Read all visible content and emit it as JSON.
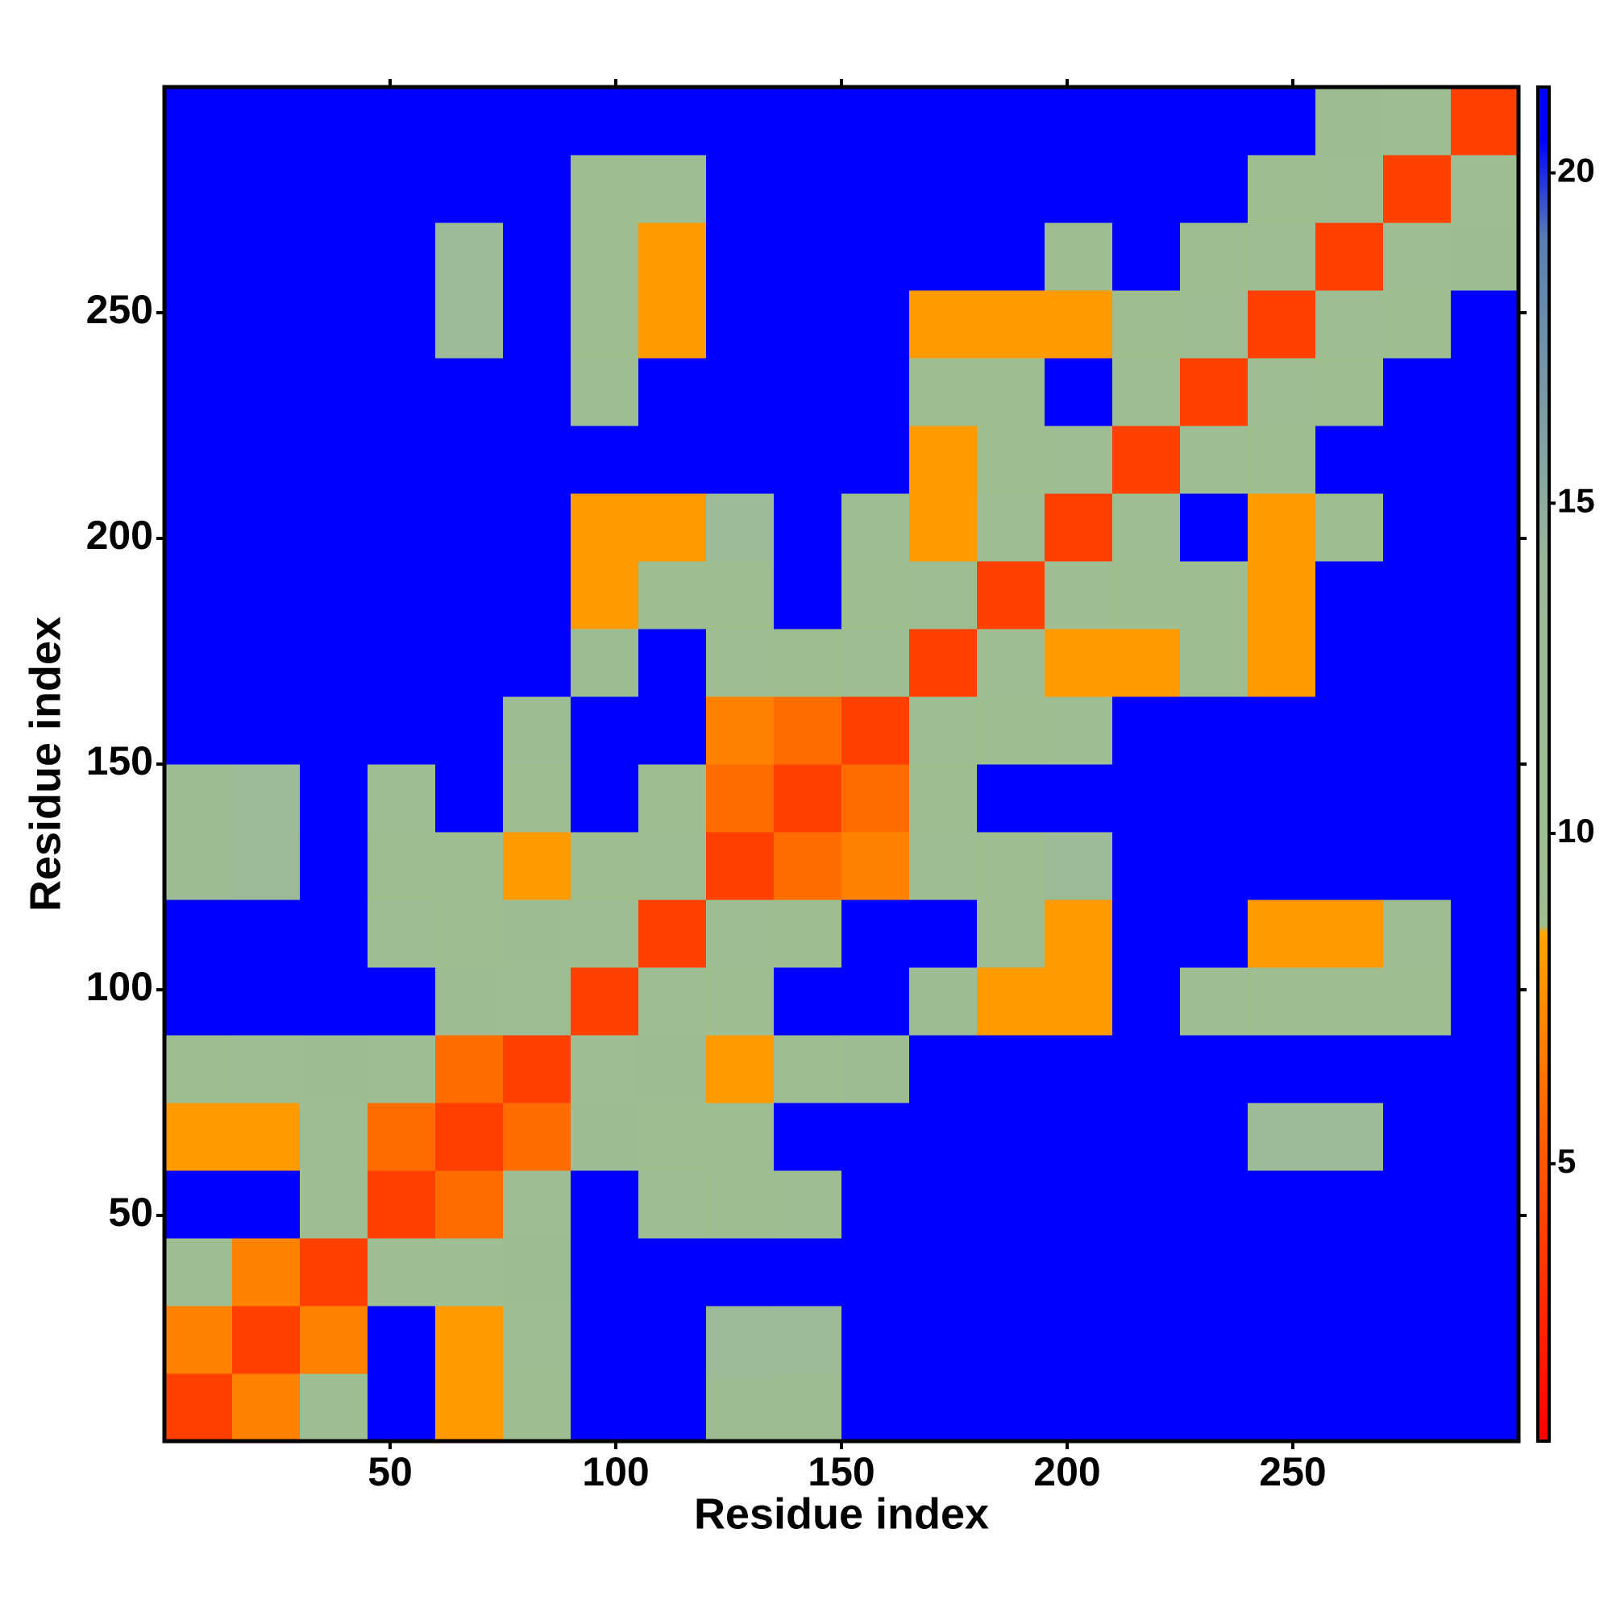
{
  "chart_data": {
    "type": "heatmap",
    "xlabel": "Residue index",
    "ylabel": "Residue index",
    "xbins": [
      0,
      15,
      30,
      45,
      60,
      75,
      90,
      105,
      120,
      135,
      150,
      165,
      180,
      195,
      210,
      225,
      240,
      255,
      270,
      285,
      300
    ],
    "ybins": [
      0,
      15,
      30,
      45,
      60,
      75,
      90,
      105,
      120,
      135,
      150,
      165,
      180,
      195,
      210,
      225,
      240,
      255,
      270,
      285,
      300
    ],
    "z": [
      [
        4,
        7,
        10,
        21,
        8,
        9,
        21,
        21,
        11,
        11,
        21,
        21,
        21,
        21,
        21,
        21,
        21,
        21,
        21,
        21
      ],
      [
        7,
        4,
        7,
        21,
        8,
        10,
        21,
        21,
        13,
        12,
        21,
        21,
        21,
        21,
        21,
        21,
        21,
        21,
        21,
        21
      ],
      [
        10,
        7,
        4,
        10,
        10,
        11,
        21,
        21,
        21,
        21,
        21,
        21,
        21,
        21,
        21,
        21,
        21,
        21,
        21,
        21
      ],
      [
        21,
        21,
        10,
        4,
        6,
        10,
        21,
        10,
        9,
        10,
        21,
        21,
        21,
        21,
        21,
        21,
        21,
        21,
        21,
        21
      ],
      [
        8,
        8,
        10,
        6,
        4,
        6,
        11,
        9,
        9,
        21,
        21,
        21,
        21,
        21,
        21,
        21,
        12,
        12,
        21,
        21
      ],
      [
        9,
        10,
        11,
        10,
        6,
        4,
        10,
        11,
        8,
        9,
        11,
        21,
        21,
        21,
        21,
        21,
        21,
        21,
        21,
        21
      ],
      [
        21,
        21,
        21,
        21,
        11,
        10,
        4,
        10,
        9,
        21,
        21,
        11,
        8,
        8,
        21,
        10,
        9,
        9,
        9,
        21
      ],
      [
        21,
        21,
        21,
        10,
        9,
        11,
        10,
        4,
        10,
        9,
        21,
        21,
        9,
        8,
        21,
        21,
        8,
        8,
        10,
        21
      ],
      [
        11,
        13,
        21,
        9,
        9,
        8,
        9,
        10,
        4,
        6,
        7,
        10,
        9,
        12,
        21,
        21,
        21,
        21,
        21,
        21
      ],
      [
        11,
        12,
        21,
        10,
        21,
        9,
        21,
        9,
        6,
        4,
        6,
        9,
        21,
        21,
        21,
        21,
        21,
        21,
        21,
        21
      ],
      [
        21,
        21,
        21,
        21,
        21,
        11,
        21,
        21,
        7,
        6,
        4,
        10,
        9,
        10,
        21,
        21,
        21,
        21,
        21,
        21
      ],
      [
        21,
        21,
        21,
        21,
        21,
        21,
        11,
        21,
        10,
        9,
        10,
        4,
        10,
        8,
        8,
        9,
        8,
        21,
        21,
        21
      ],
      [
        21,
        21,
        21,
        21,
        21,
        21,
        8,
        9,
        9,
        21,
        9,
        10,
        4,
        10,
        9,
        9,
        8,
        21,
        21,
        21
      ],
      [
        21,
        21,
        21,
        21,
        21,
        21,
        8,
        8,
        12,
        21,
        10,
        8,
        10,
        4,
        10,
        21,
        8,
        9,
        21,
        21
      ],
      [
        21,
        21,
        21,
        21,
        21,
        21,
        21,
        21,
        21,
        21,
        21,
        8,
        9,
        10,
        4,
        10,
        9,
        21,
        21,
        21
      ],
      [
        21,
        21,
        21,
        21,
        21,
        21,
        10,
        21,
        21,
        21,
        21,
        9,
        9,
        21,
        10,
        4,
        10,
        9,
        21,
        21
      ],
      [
        21,
        21,
        21,
        21,
        12,
        21,
        9,
        8,
        21,
        21,
        21,
        8,
        8,
        8,
        9,
        10,
        4,
        10,
        9,
        21
      ],
      [
        21,
        21,
        21,
        21,
        12,
        21,
        9,
        8,
        21,
        21,
        21,
        21,
        21,
        9,
        21,
        9,
        10,
        4,
        10,
        11
      ],
      [
        21,
        21,
        21,
        21,
        21,
        21,
        9,
        10,
        21,
        21,
        21,
        21,
        21,
        21,
        21,
        21,
        9,
        10,
        4,
        10
      ],
      [
        21,
        21,
        21,
        21,
        21,
        21,
        21,
        21,
        21,
        21,
        21,
        21,
        21,
        21,
        21,
        21,
        21,
        11,
        10,
        4
      ]
    ],
    "xlim": [
      0,
      300
    ],
    "ylim": [
      0,
      300
    ],
    "xticks": [
      50,
      100,
      150,
      200,
      250
    ],
    "yticks": [
      50,
      100,
      150,
      200,
      250
    ],
    "zlim": [
      0.8,
      21.3
    ],
    "zticks": [
      5,
      10,
      15,
      20
    ],
    "colorscale": [
      [
        0.8,
        "#ff0000"
      ],
      [
        4,
        "#ff4000"
      ],
      [
        8.5,
        "#ffa500"
      ],
      [
        8.6,
        "#9fbf8f"
      ],
      [
        14,
        "#9bb89a"
      ],
      [
        19,
        "#5a7fb0"
      ],
      [
        20.5,
        "#0000ff"
      ],
      [
        21.3,
        "#0000ff"
      ]
    ]
  }
}
